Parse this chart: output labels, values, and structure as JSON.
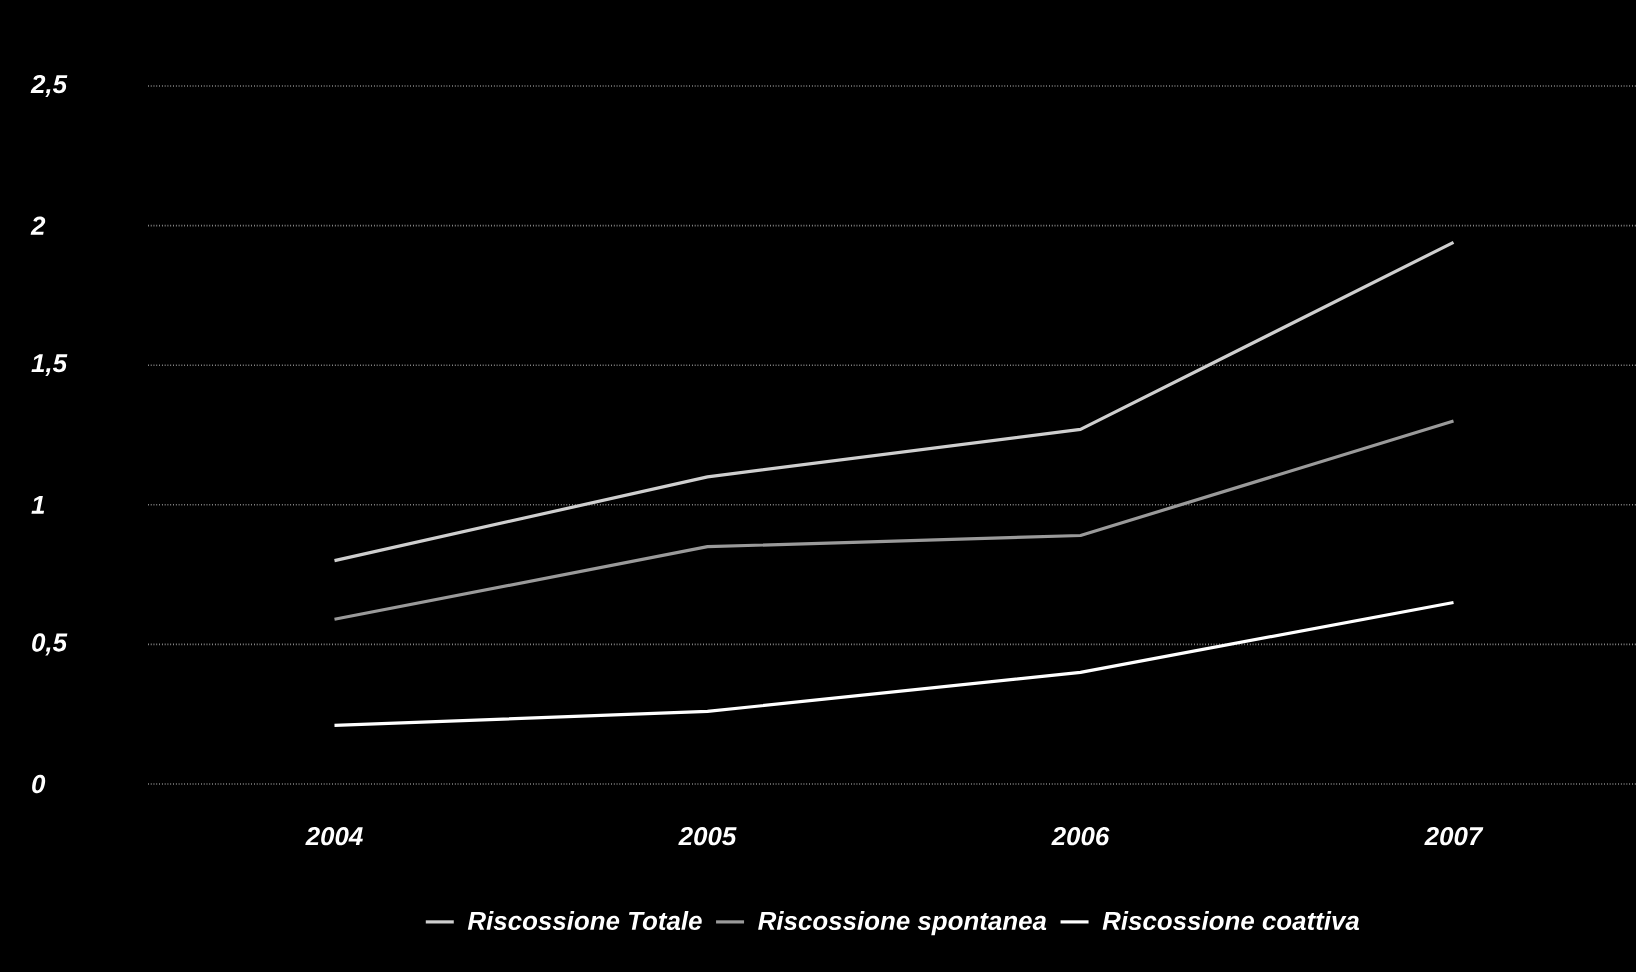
{
  "chart_data": {
    "type": "line",
    "categories": [
      "2004",
      "2005",
      "2006",
      "2007"
    ],
    "series": [
      {
        "name": "Riscossione Totale",
        "color": "#cfcfcf",
        "values": [
          0.8,
          1.1,
          1.27,
          1.94
        ]
      },
      {
        "name": "Riscossione spontanea",
        "color": "#9a9a9a",
        "values": [
          0.59,
          0.85,
          0.89,
          1.3
        ]
      },
      {
        "name": "Riscossione coattiva",
        "color": "#ffffff",
        "values": [
          0.21,
          0.26,
          0.4,
          0.65
        ]
      }
    ],
    "ylim": [
      0,
      2.5
    ],
    "yticks": [
      0,
      {
        "value": 0.5,
        "label": "0,5"
      },
      1,
      {
        "value": 1.5,
        "label": "1,5"
      },
      2,
      {
        "value": 2.5,
        "label": "2,5"
      }
    ],
    "grid": "y",
    "legend": "bottom",
    "marker": "none",
    "line_style": "solid"
  }
}
